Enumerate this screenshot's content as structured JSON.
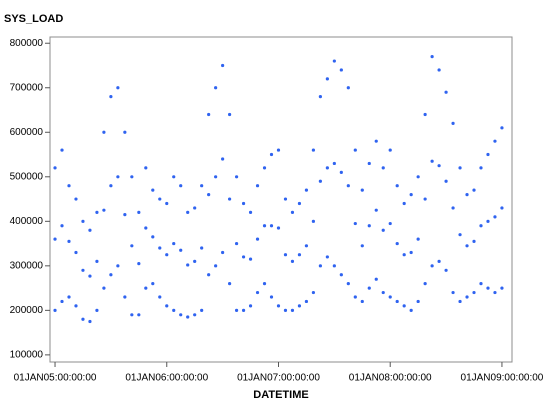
{
  "chart_data": {
    "type": "scatter",
    "title": "SYS_LOAD",
    "x_label": "DATETIME",
    "color": "#2f63f0",
    "xlim": [
      2004.955,
      2009.09
    ],
    "xticks": [
      {
        "value": 2005,
        "label": "01JAN05:00:00:00"
      },
      {
        "value": 2006,
        "label": "01JAN06:00:00:00"
      },
      {
        "value": 2007,
        "label": "01JAN07:00:00:00"
      },
      {
        "value": 2008,
        "label": "01JAN08:00:00:00"
      },
      {
        "value": 2009,
        "label": "01JAN09:00:00:00"
      }
    ],
    "ylim": [
      84000,
      814000
    ],
    "yticks": [
      100000,
      200000,
      300000,
      400000,
      500000,
      600000,
      700000,
      800000
    ],
    "x": [
      2005,
      2005,
      2005,
      2005.0625,
      2005.0625,
      2005.0625,
      2005.125,
      2005.125,
      2005.125,
      2005.1875,
      2005.1875,
      2005.1875,
      2005.25,
      2005.25,
      2005.25,
      2005.3125,
      2005.3125,
      2005.3125,
      2005.375,
      2005.375,
      2005.375,
      2005.4375,
      2005.4375,
      2005.4375,
      2005.5,
      2005.5,
      2005.5,
      2005.5625,
      2005.5625,
      2005.5625,
      2005.625,
      2005.625,
      2005.625,
      2005.6875,
      2005.6875,
      2005.6875,
      2005.75,
      2005.75,
      2005.75,
      2005.8125,
      2005.8125,
      2005.8125,
      2005.875,
      2005.875,
      2005.875,
      2005.9375,
      2005.9375,
      2005.9375,
      2006,
      2006,
      2006,
      2006.0625,
      2006.0625,
      2006.0625,
      2006.125,
      2006.125,
      2006.125,
      2006.1875,
      2006.1875,
      2006.1875,
      2006.25,
      2006.25,
      2006.25,
      2006.3125,
      2006.3125,
      2006.3125,
      2006.375,
      2006.375,
      2006.375,
      2006.4375,
      2006.4375,
      2006.4375,
      2006.5,
      2006.5,
      2006.5,
      2006.5625,
      2006.5625,
      2006.5625,
      2006.625,
      2006.625,
      2006.625,
      2006.6875,
      2006.6875,
      2006.6875,
      2006.75,
      2006.75,
      2006.75,
      2006.8125,
      2006.8125,
      2006.8125,
      2006.875,
      2006.875,
      2006.875,
      2006.9375,
      2006.9375,
      2006.9375,
      2007,
      2007,
      2007,
      2007.0625,
      2007.0625,
      2007.0625,
      2007.125,
      2007.125,
      2007.125,
      2007.1875,
      2007.1875,
      2007.1875,
      2007.25,
      2007.25,
      2007.25,
      2007.3125,
      2007.3125,
      2007.3125,
      2007.375,
      2007.375,
      2007.375,
      2007.4375,
      2007.4375,
      2007.4375,
      2007.5,
      2007.5,
      2007.5,
      2007.5625,
      2007.5625,
      2007.5625,
      2007.625,
      2007.625,
      2007.625,
      2007.6875,
      2007.6875,
      2007.6875,
      2007.75,
      2007.75,
      2007.75,
      2007.8125,
      2007.8125,
      2007.8125,
      2007.875,
      2007.875,
      2007.875,
      2007.9375,
      2007.9375,
      2007.9375,
      2008,
      2008,
      2008,
      2008.0625,
      2008.0625,
      2008.0625,
      2008.125,
      2008.125,
      2008.125,
      2008.1875,
      2008.1875,
      2008.1875,
      2008.25,
      2008.25,
      2008.25,
      2008.3125,
      2008.3125,
      2008.3125,
      2008.375,
      2008.375,
      2008.375,
      2008.4375,
      2008.4375,
      2008.4375,
      2008.5,
      2008.5,
      2008.5,
      2008.5625,
      2008.5625,
      2008.5625,
      2008.625,
      2008.625,
      2008.625,
      2008.6875,
      2008.6875,
      2008.6875,
      2008.75,
      2008.75,
      2008.75,
      2008.8125,
      2008.8125,
      2008.8125,
      2008.875,
      2008.875,
      2008.875,
      2008.9375,
      2008.9375,
      2008.9375,
      2009,
      2009,
      2009
    ],
    "values": [
      200000,
      360000,
      520000,
      220000,
      390000,
      560000,
      230000,
      355000,
      480000,
      210000,
      330000,
      450000,
      180000,
      290000,
      400000,
      175000,
      277000,
      380000,
      200000,
      310000,
      420000,
      250000,
      425000,
      600000,
      280000,
      480000,
      680000,
      300000,
      500000,
      700000,
      230000,
      415000,
      600000,
      190000,
      345000,
      500000,
      190000,
      305000,
      420000,
      250000,
      385000,
      520000,
      260000,
      365000,
      470000,
      230000,
      340000,
      450000,
      210000,
      325000,
      440000,
      200000,
      350000,
      500000,
      190000,
      335000,
      480000,
      185000,
      302000,
      420000,
      190000,
      310000,
      430000,
      200000,
      340000,
      480000,
      280000,
      460000,
      640000,
      300000,
      500000,
      700000,
      330000,
      540000,
      750000,
      260000,
      450000,
      640000,
      200000,
      350000,
      500000,
      200000,
      320000,
      440000,
      210000,
      315000,
      420000,
      240000,
      360000,
      480000,
      260000,
      390000,
      520000,
      230000,
      390000,
      550000,
      210000,
      385000,
      560000,
      200000,
      325000,
      450000,
      200000,
      310000,
      420000,
      210000,
      325000,
      440000,
      220000,
      345000,
      470000,
      240000,
      400000,
      560000,
      300000,
      490000,
      680000,
      320000,
      520000,
      720000,
      300000,
      530000,
      760000,
      280000,
      510000,
      740000,
      260000,
      480000,
      700000,
      230000,
      395000,
      560000,
      220000,
      345000,
      470000,
      250000,
      390000,
      530000,
      270000,
      425000,
      580000,
      240000,
      380000,
      520000,
      230000,
      395000,
      560000,
      220000,
      350000,
      480000,
      210000,
      325000,
      440000,
      200000,
      330000,
      460000,
      220000,
      360000,
      500000,
      260000,
      450000,
      640000,
      300000,
      535000,
      770000,
      310000,
      525000,
      740000,
      290000,
      490000,
      690000,
      240000,
      430000,
      620000,
      220000,
      370000,
      520000,
      230000,
      345000,
      460000,
      240000,
      355000,
      470000,
      260000,
      390000,
      520000,
      250000,
      400000,
      550000,
      240000,
      410000,
      580000,
      250000,
      430000,
      610000
    ]
  }
}
